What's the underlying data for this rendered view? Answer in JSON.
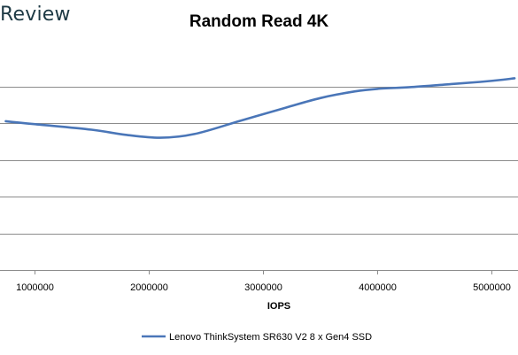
{
  "brand": {
    "text": "Review"
  },
  "chart_data": {
    "type": "line",
    "title": "Random Read 4K",
    "xlabel": "IOPS",
    "ylabel": "",
    "xlim": [
      700000,
      5230000
    ],
    "ylim": [
      0,
      6
    ],
    "x_ticks": [
      1000000,
      2000000,
      3000000,
      4000000,
      5000000
    ],
    "x_tick_labels": [
      "1000000",
      "2000000",
      "3000000",
      "4000000",
      "5000000"
    ],
    "y_gridlines": [
      0,
      1,
      2,
      3,
      4,
      5
    ],
    "grid": true,
    "legend_position": "bottom",
    "colors": {
      "series": "#4a76b8",
      "grid": "#8c8c8c"
    },
    "series": [
      {
        "name": "Lenovo ThinkSystem SR630 V2 8 x Gen4 SSD",
        "x": [
          750000,
          1000000,
          1500000,
          1800000,
          2100000,
          2400000,
          2800000,
          3200000,
          3500000,
          3800000,
          4000000,
          4300000,
          4600000,
          4900000,
          5100000,
          5200000
        ],
        "y": [
          4.05,
          3.97,
          3.82,
          3.68,
          3.6,
          3.7,
          4.06,
          4.42,
          4.68,
          4.86,
          4.93,
          4.98,
          5.05,
          5.12,
          5.18,
          5.22
        ]
      }
    ]
  }
}
